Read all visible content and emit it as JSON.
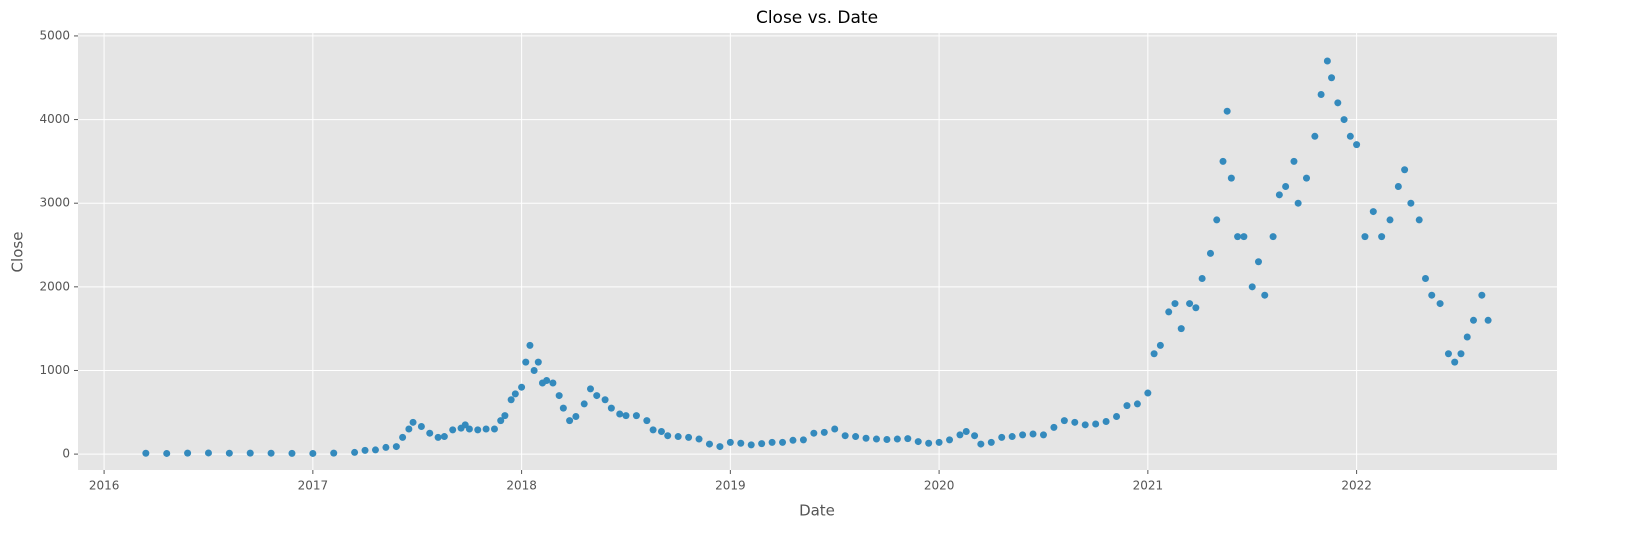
{
  "chart_data": {
    "type": "scatter",
    "title": "Close vs. Date",
    "x_label": "Date",
    "y_label": "Close",
    "color": "#348abd",
    "grid": true,
    "xlim": [
      2015.875,
      2022.96
    ],
    "xticks": [
      2016,
      2017,
      2018,
      2019,
      2020,
      2021,
      2022
    ],
    "ylim": [
      -190,
      5035
    ],
    "yticks": [
      0,
      1000,
      2000,
      3000,
      4000,
      5000
    ],
    "x": [
      2016.2,
      2016.3,
      2016.4,
      2016.5,
      2016.6,
      2016.7,
      2016.8,
      2016.9,
      2017.0,
      2017.1,
      2017.2,
      2017.25,
      2017.3,
      2017.35,
      2017.4,
      2017.43,
      2017.46,
      2017.48,
      2017.52,
      2017.56,
      2017.6,
      2017.63,
      2017.67,
      2017.71,
      2017.73,
      2017.75,
      2017.79,
      2017.83,
      2017.87,
      2017.9,
      2017.92,
      2017.95,
      2017.97,
      2018.0,
      2018.02,
      2018.04,
      2018.06,
      2018.08,
      2018.1,
      2018.12,
      2018.15,
      2018.18,
      2018.2,
      2018.23,
      2018.26,
      2018.3,
      2018.33,
      2018.36,
      2018.4,
      2018.43,
      2018.47,
      2018.5,
      2018.55,
      2018.6,
      2018.63,
      2018.67,
      2018.7,
      2018.75,
      2018.8,
      2018.85,
      2018.9,
      2018.95,
      2019.0,
      2019.05,
      2019.1,
      2019.15,
      2019.2,
      2019.25,
      2019.3,
      2019.35,
      2019.4,
      2019.45,
      2019.5,
      2019.55,
      2019.6,
      2019.65,
      2019.7,
      2019.75,
      2019.8,
      2019.85,
      2019.9,
      2019.95,
      2020.0,
      2020.05,
      2020.1,
      2020.13,
      2020.17,
      2020.2,
      2020.25,
      2020.3,
      2020.35,
      2020.4,
      2020.45,
      2020.5,
      2020.55,
      2020.6,
      2020.65,
      2020.7,
      2020.75,
      2020.8,
      2020.85,
      2020.9,
      2020.95,
      2021.0,
      2021.03,
      2021.06,
      2021.1,
      2021.13,
      2021.16,
      2021.2,
      2021.23,
      2021.26,
      2021.3,
      2021.33,
      2021.36,
      2021.38,
      2021.4,
      2021.43,
      2021.46,
      2021.5,
      2021.53,
      2021.56,
      2021.6,
      2021.63,
      2021.66,
      2021.7,
      2021.72,
      2021.76,
      2021.8,
      2021.83,
      2021.86,
      2021.88,
      2021.91,
      2021.94,
      2021.97,
      2022.0,
      2022.04,
      2022.08,
      2022.12,
      2022.16,
      2022.2,
      2022.23,
      2022.26,
      2022.3,
      2022.33,
      2022.36,
      2022.4,
      2022.44,
      2022.47,
      2022.5,
      2022.53,
      2022.56,
      2022.6,
      2022.63
    ],
    "values": [
      10,
      8,
      12,
      14,
      11,
      12,
      11,
      9,
      8,
      12,
      20,
      45,
      50,
      80,
      90,
      200,
      300,
      380,
      330,
      250,
      200,
      210,
      290,
      310,
      350,
      300,
      290,
      300,
      300,
      400,
      460,
      650,
      720,
      800,
      1100,
      1300,
      1000,
      1100,
      850,
      880,
      850,
      700,
      550,
      400,
      450,
      600,
      780,
      700,
      650,
      550,
      480,
      460,
      460,
      400,
      290,
      270,
      220,
      210,
      200,
      180,
      120,
      90,
      140,
      130,
      110,
      125,
      140,
      140,
      165,
      170,
      250,
      260,
      300,
      220,
      210,
      190,
      180,
      175,
      180,
      185,
      150,
      130,
      140,
      170,
      230,
      270,
      220,
      120,
      140,
      200,
      210,
      230,
      240,
      230,
      320,
      400,
      380,
      350,
      360,
      390,
      450,
      580,
      600,
      730,
      1200,
      1300,
      1700,
      1800,
      1500,
      1800,
      1750,
      2100,
      2400,
      2800,
      3500,
      4100,
      3300,
      2600,
      2600,
      2000,
      2300,
      1900,
      2600,
      3100,
      3200,
      3500,
      3000,
      3300,
      3800,
      4300,
      4700,
      4500,
      4200,
      4000,
      3800,
      3700,
      2600,
      2900,
      2600,
      2800,
      3200,
      3400,
      3000,
      2800,
      2100,
      1900,
      1800,
      1200,
      1100,
      1200,
      1400,
      1600,
      1900,
      1600
    ]
  }
}
